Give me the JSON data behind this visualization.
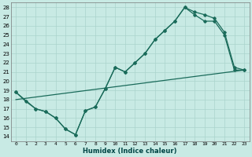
{
  "xlabel": "Humidex (Indice chaleur)",
  "xlim": [
    -0.5,
    23.5
  ],
  "ylim": [
    13.5,
    28.5
  ],
  "xticks": [
    0,
    1,
    2,
    3,
    4,
    5,
    6,
    7,
    8,
    9,
    10,
    11,
    12,
    13,
    14,
    15,
    16,
    17,
    18,
    19,
    20,
    21,
    22,
    23
  ],
  "yticks": [
    14,
    15,
    16,
    17,
    18,
    19,
    20,
    21,
    22,
    23,
    24,
    25,
    26,
    27,
    28
  ],
  "bg_color": "#c8eae4",
  "grid_color": "#aad4cc",
  "line_color": "#1a6b5a",
  "line1_x": [
    0,
    1,
    2,
    3,
    4,
    5,
    6,
    7,
    8,
    9,
    10,
    11,
    12,
    13,
    14,
    15,
    16,
    17,
    18,
    19,
    20,
    21,
    22,
    23
  ],
  "line1_y": [
    18.8,
    17.8,
    17.0,
    16.7,
    16.0,
    14.8,
    14.2,
    16.8,
    17.2,
    19.2,
    21.5,
    21.0,
    22.0,
    23.0,
    24.5,
    25.5,
    26.5,
    28.0,
    27.2,
    26.5,
    26.5,
    25.0,
    21.2,
    21.2
  ],
  "line2_x": [
    0,
    2,
    3,
    4,
    5,
    6,
    7,
    8,
    9,
    10,
    11,
    12,
    13,
    14,
    15,
    16,
    17,
    18,
    19,
    20,
    21,
    22,
    23
  ],
  "line2_y": [
    18.8,
    17.0,
    16.7,
    16.0,
    14.8,
    14.2,
    16.8,
    17.2,
    19.2,
    21.5,
    21.0,
    22.0,
    23.0,
    24.5,
    25.5,
    26.5,
    28.0,
    27.5,
    27.2,
    26.8,
    25.3,
    21.5,
    21.2
  ],
  "line3_x": [
    0,
    23
  ],
  "line3_y": [
    18.0,
    21.2
  ]
}
